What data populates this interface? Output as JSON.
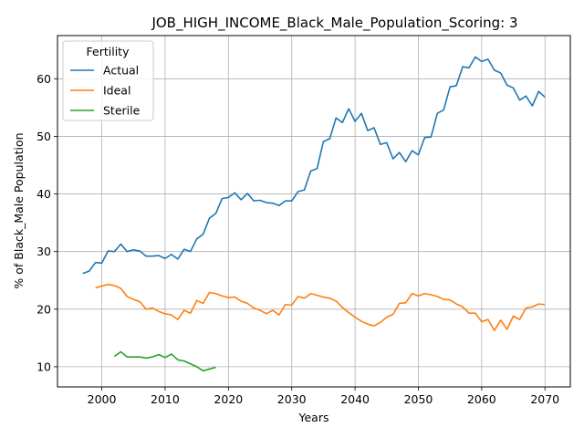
{
  "chart_data": {
    "type": "line",
    "title": "JOB_HIGH_INCOME_Black_Male_Population_Scoring: 3",
    "xlabel": "Years",
    "ylabel": "% of Black_Male Population",
    "xlim": [
      1993,
      2074
    ],
    "ylim": [
      6.5,
      67.5
    ],
    "xticks": [
      2000,
      2010,
      2020,
      2030,
      2040,
      2050,
      2060,
      2070
    ],
    "yticks": [
      10,
      20,
      30,
      40,
      50,
      60
    ],
    "grid": true,
    "legend": {
      "title": "Fertility",
      "position": "top-left"
    },
    "series": [
      {
        "name": "Actual",
        "color": "#1f77b4",
        "x": [
          1997,
          1998,
          1999,
          2000,
          2001,
          2002,
          2003,
          2004,
          2005,
          2006,
          2007,
          2008,
          2009,
          2010,
          2011,
          2012,
          2013,
          2014,
          2015,
          2016,
          2017,
          2018,
          2019,
          2020,
          2021,
          2022,
          2023,
          2024,
          2025,
          2026,
          2027,
          2028,
          2029,
          2030,
          2031,
          2032,
          2033,
          2034,
          2035,
          2036,
          2037,
          2038,
          2039,
          2040,
          2041,
          2042,
          2043,
          2044,
          2045,
          2046,
          2047,
          2048,
          2049,
          2050,
          2051,
          2052,
          2053,
          2054,
          2055,
          2056,
          2057,
          2058,
          2059,
          2060,
          2061,
          2062,
          2063,
          2064,
          2065,
          2066,
          2067,
          2068,
          2069,
          2070
        ],
        "y": [
          26.2,
          26.6,
          28.1,
          28.0,
          30.1,
          30.0,
          31.3,
          30.0,
          30.3,
          30.1,
          29.2,
          29.2,
          29.3,
          28.8,
          29.5,
          28.7,
          30.4,
          30.0,
          32.2,
          33.0,
          35.8,
          36.6,
          39.2,
          39.4,
          40.2,
          39.0,
          40.1,
          38.8,
          38.9,
          38.5,
          38.4,
          38.0,
          38.8,
          38.8,
          40.4,
          40.7,
          44.0,
          44.4,
          49.1,
          49.6,
          53.2,
          52.4,
          54.8,
          52.6,
          54.0,
          51.0,
          51.5,
          48.6,
          48.9,
          46.1,
          47.2,
          45.6,
          47.5,
          46.8,
          49.8,
          49.9,
          54.0,
          54.6,
          58.6,
          58.8,
          62.1,
          61.9,
          63.8,
          63.0,
          63.4,
          61.5,
          61.0,
          58.9,
          58.4,
          56.3,
          57.0,
          55.3,
          57.8,
          56.8
        ]
      },
      {
        "name": "Ideal",
        "color": "#ff7f0e",
        "x": [
          1999,
          2000,
          2001,
          2002,
          2003,
          2004,
          2005,
          2006,
          2007,
          2008,
          2009,
          2010,
          2011,
          2012,
          2013,
          2014,
          2015,
          2016,
          2017,
          2018,
          2019,
          2020,
          2021,
          2022,
          2023,
          2024,
          2025,
          2026,
          2027,
          2028,
          2029,
          2030,
          2031,
          2032,
          2033,
          2034,
          2035,
          2036,
          2037,
          2038,
          2039,
          2040,
          2041,
          2042,
          2043,
          2044,
          2045,
          2046,
          2047,
          2048,
          2049,
          2050,
          2051,
          2052,
          2053,
          2054,
          2055,
          2056,
          2057,
          2058,
          2059,
          2060,
          2061,
          2062,
          2063,
          2064,
          2065,
          2066,
          2067,
          2068,
          2069,
          2070
        ],
        "y": [
          23.7,
          24.0,
          24.3,
          24.1,
          23.6,
          22.2,
          21.7,
          21.3,
          20.0,
          20.2,
          19.6,
          19.2,
          19.0,
          18.2,
          19.8,
          19.3,
          21.5,
          21.0,
          22.9,
          22.7,
          22.3,
          22.0,
          22.1,
          21.4,
          21.0,
          20.2,
          19.8,
          19.2,
          19.8,
          19.0,
          20.8,
          20.7,
          22.2,
          21.9,
          22.7,
          22.4,
          22.1,
          21.9,
          21.4,
          20.3,
          19.4,
          18.6,
          17.9,
          17.4,
          17.1,
          17.7,
          18.6,
          19.1,
          21.0,
          21.1,
          22.7,
          22.3,
          22.7,
          22.5,
          22.2,
          21.7,
          21.6,
          20.9,
          20.4,
          19.3,
          19.3,
          17.8,
          18.2,
          16.3,
          18.1,
          16.5,
          18.8,
          18.2,
          20.2,
          20.4,
          20.9,
          20.8
        ]
      },
      {
        "name": "Sterile",
        "color": "#2ca02c",
        "x": [
          2002,
          2003,
          2004,
          2005,
          2006,
          2007,
          2008,
          2009,
          2010,
          2011,
          2012,
          2013,
          2014,
          2015,
          2016,
          2017,
          2018
        ],
        "y": [
          11.8,
          12.6,
          11.7,
          11.7,
          11.7,
          11.5,
          11.7,
          12.1,
          11.6,
          12.2,
          11.2,
          11.0,
          10.5,
          10.0,
          9.3,
          9.6,
          9.9
        ]
      }
    ]
  }
}
